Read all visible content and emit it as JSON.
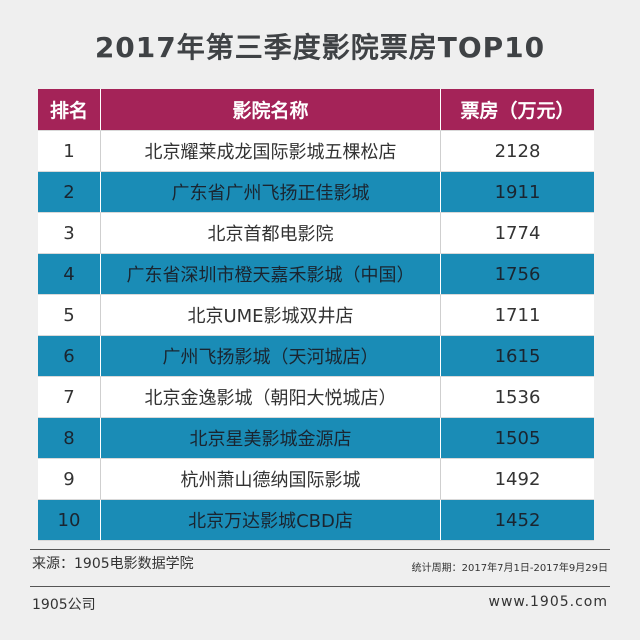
{
  "title": "2017年第三季度影院票房TOP10",
  "chart_data": {
    "type": "table",
    "columns": [
      "排名",
      "影院名称",
      "票房（万元）"
    ],
    "rows": [
      {
        "rank": "1",
        "name": "北京耀莱成龙国际影城五棵松店",
        "box": "2128"
      },
      {
        "rank": "2",
        "name": "广东省广州飞扬正佳影城",
        "box": "1911"
      },
      {
        "rank": "3",
        "name": "北京首都电影院",
        "box": "1774"
      },
      {
        "rank": "4",
        "name": "广东省深圳市橙天嘉禾影城（中国）",
        "box": "1756"
      },
      {
        "rank": "5",
        "name": "北京UME影城双井店",
        "box": "1711"
      },
      {
        "rank": "6",
        "name": "广州飞扬影城（天河城店）",
        "box": "1615"
      },
      {
        "rank": "7",
        "name": "北京金逸影城（朝阳大悦城店）",
        "box": "1536"
      },
      {
        "rank": "8",
        "name": "北京星美影城金源店",
        "box": "1505"
      },
      {
        "rank": "9",
        "name": "杭州萧山德纳国际影城",
        "box": "1492"
      },
      {
        "rank": "10",
        "name": "北京万达影城CBD店",
        "box": "1452"
      }
    ],
    "colors": {
      "header": "#a42358",
      "alt_row": "#1a8cb6",
      "row": "#ffffff"
    }
  },
  "footer": {
    "source": "来源：1905电影数据学院",
    "period": "统计周期：2017年7月1日-2017年9月29日",
    "company": "1905公司",
    "website": "www.1905.com"
  }
}
